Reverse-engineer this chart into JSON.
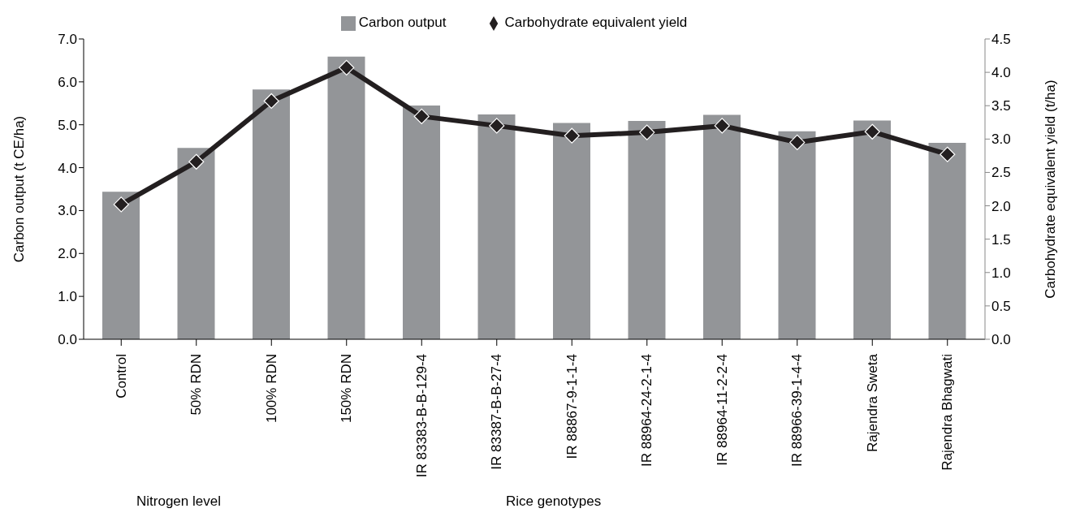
{
  "chart_data": {
    "type": "bar",
    "categories": [
      "Control",
      "50% RDN",
      "100% RDN",
      "150% RDN",
      "IR 83383-B-B-129-4",
      "IR 83387-B-B-27-4",
      "IR 88867-9-1-1-4",
      "IR 88964-24-2-1-4",
      "IR 88964-11-2-2-4",
      "IR 88966-39-1-4-4",
      "Rajendra Sweta",
      "Rajendra Bhagwati"
    ],
    "series": [
      {
        "name": "Carbon output",
        "color": "#939598",
        "values": [
          3.44,
          4.46,
          5.82,
          6.59,
          5.45,
          5.24,
          5.04,
          5.09,
          5.23,
          4.85,
          5.1,
          4.58
        ]
      },
      {
        "name": "Carbohydrate equivalent yield",
        "type": "line",
        "axis": "y2",
        "color": "#231f20",
        "marker": "diamond",
        "values": [
          2.02,
          2.66,
          3.57,
          4.07,
          3.34,
          3.2,
          3.05,
          3.1,
          3.2,
          2.95,
          3.11,
          2.77
        ]
      }
    ],
    "ylabel": "Carbon output (t CE/ha)",
    "y2label": "Carbohydrate equivalent yield (t/ha)",
    "ylim": [
      0,
      7
    ],
    "yticks": [
      {
        "value": 0,
        "label": "0.0"
      },
      {
        "value": 1,
        "label": "1.0"
      },
      {
        "value": 2,
        "label": "2.0"
      },
      {
        "value": 3,
        "label": "3.0"
      },
      {
        "value": 4,
        "label": "4.0"
      },
      {
        "value": 5,
        "label": "5.0"
      },
      {
        "value": 6,
        "label": "6.0"
      },
      {
        "value": 7,
        "label": "7.0"
      }
    ],
    "y2lim": [
      0,
      4.5
    ],
    "y2ticks": [
      {
        "value": 0,
        "label": "0.0"
      },
      {
        "value": 0.5,
        "label": "0.5"
      },
      {
        "value": 1,
        "label": "1.0"
      },
      {
        "value": 1.5,
        "label": "1.5"
      },
      {
        "value": 2,
        "label": "2.0"
      },
      {
        "value": 2.5,
        "label": "2.5"
      },
      {
        "value": 3,
        "label": "3.0"
      },
      {
        "value": 3.5,
        "label": "3.5"
      },
      {
        "value": 4,
        "label": "4.0"
      },
      {
        "value": 4.5,
        "label": "4.5"
      }
    ],
    "annotations": [
      "Nitrogen level",
      "Rice genotypes"
    ],
    "legend": "top",
    "line_style": "solid"
  }
}
